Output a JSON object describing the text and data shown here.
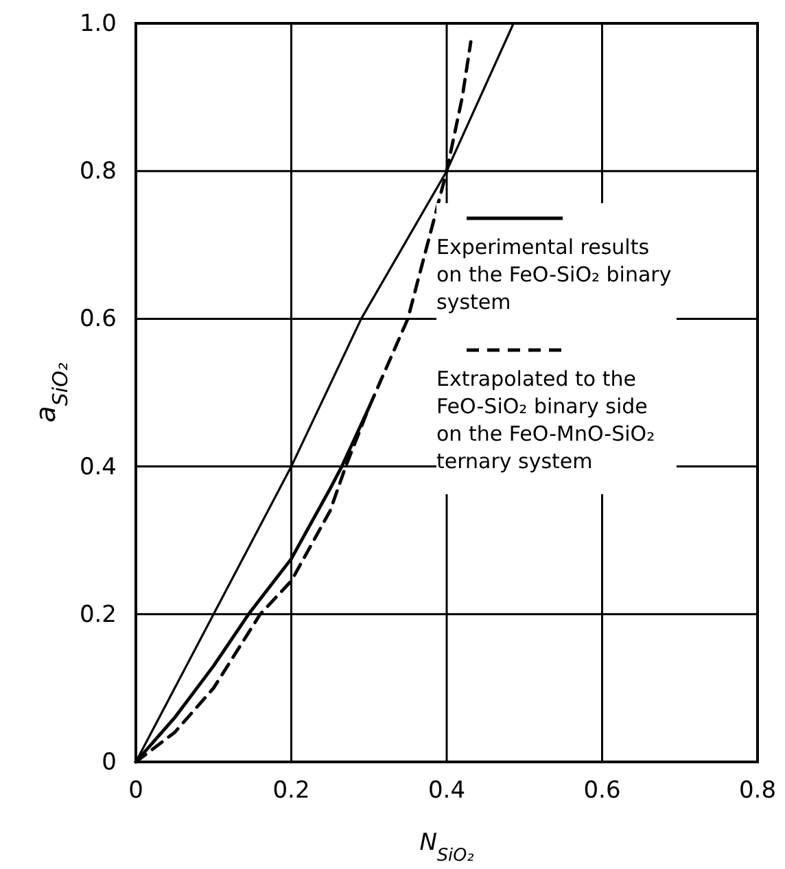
{
  "chart_data": {
    "type": "line",
    "xlabel": "N$_{SiO₂}$",
    "ylabel": "a$_{SiO₂}$",
    "xlim": [
      0,
      0.8
    ],
    "ylim": [
      0,
      1.0
    ],
    "xticks": [
      0,
      0.2,
      0.4,
      0.6,
      0.8
    ],
    "yticks": [
      0,
      0.2,
      0.4,
      0.6,
      0.8,
      {
        "value": 1.0,
        "label": "1.0"
      }
    ],
    "grid": true,
    "legend": "right",
    "marker": "none",
    "series": [
      {
        "color": "#000000",
        "line_style": "solid",
        "x": [
          0,
          0.1,
          0.2,
          0.29,
          0.4,
          0.486
        ],
        "values": [
          0,
          0.2,
          0.4,
          0.6,
          0.8,
          1.0
        ]
      },
      {
        "name": "Experimental results on the FeO-SiO₂ binary system",
        "color": "#000000",
        "line_style": "solid",
        "x": [
          0,
          0.05,
          0.1,
          0.145,
          0.2,
          0.25,
          0.265,
          0.3
        ],
        "values": [
          0,
          0.06,
          0.13,
          0.2,
          0.275,
          0.37,
          0.4,
          0.48
        ]
      },
      {
        "name": "Extrapolated to the FeO-SiO₂ binary side on the FeO-MnO-SiO₂ ternary system",
        "color": "#000000",
        "line_style": "dashed",
        "x": [
          0,
          0.05,
          0.1,
          0.16,
          0.2,
          0.25,
          0.27,
          0.3,
          0.35,
          0.4,
          0.42,
          0.431
        ],
        "values": [
          0,
          0.04,
          0.1,
          0.2,
          0.245,
          0.34,
          0.4,
          0.48,
          0.6,
          0.8,
          0.9,
          0.975
        ]
      }
    ]
  }
}
